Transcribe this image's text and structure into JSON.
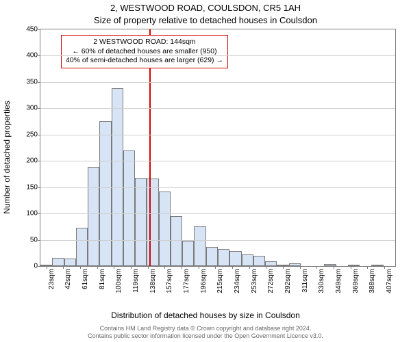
{
  "titles": {
    "line1": "2, WESTWOOD ROAD, COULSDON, CR5 1AH",
    "line2": "Size of property relative to detached houses in Coulsdon"
  },
  "axes": {
    "y_title": "Number of detached properties",
    "x_title": "Distribution of detached houses by size in Coulsdon",
    "ylim": [
      0,
      450
    ],
    "ytick_step": 50,
    "x_labels": [
      "23sqm",
      "42sqm",
      "61sqm",
      "81sqm",
      "100sqm",
      "119sqm",
      "138sqm",
      "157sqm",
      "177sqm",
      "196sqm",
      "215sqm",
      "234sqm",
      "253sqm",
      "272sqm",
      "292sqm",
      "311sqm",
      "330sqm",
      "349sqm",
      "369sqm",
      "388sqm",
      "407sqm"
    ],
    "label_fontsize": 10,
    "axis_color": "#7a7a7a",
    "grid_color": "#cfcfcf"
  },
  "chart": {
    "type": "histogram",
    "values": [
      3,
      15,
      14,
      73,
      188,
      276,
      338,
      220,
      168,
      167,
      142,
      95,
      48,
      75,
      37,
      33,
      29,
      22,
      20,
      9,
      3,
      5,
      0,
      0,
      4,
      0,
      3,
      0,
      3,
      0
    ],
    "bar_fill": "#d6e4f5",
    "bar_stroke": "#7a7a7a",
    "background": "#ffffff"
  },
  "marker": {
    "color": "#d40000",
    "position_sqm": 144,
    "x_min_sqm": 23,
    "x_max_sqm": 417
  },
  "info_box": {
    "line1": "2 WESTWOOD ROAD: 144sqm",
    "line2": "← 60% of detached houses are smaller (950)",
    "line3": "40% of semi-detached houses are larger (629) →",
    "border_color": "#d40000",
    "bg_color": "#ffffff"
  },
  "footer": {
    "line1": "Contains HM Land Registry data © Crown copyright and database right 2024.",
    "line2": "Contains public sector information licensed under the Open Government Licence v3.0."
  }
}
